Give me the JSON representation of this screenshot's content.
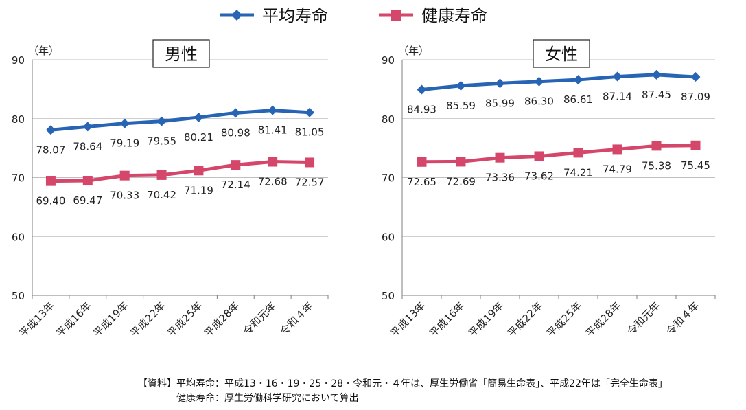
{
  "legend": [
    {
      "label": "平均寿命",
      "color": "#2764b4"
    },
    {
      "label": "健康寿命",
      "color": "#d5476a"
    }
  ],
  "source": {
    "line1": "【資料】平均寿命：平成13・16・19・25・28・令和元・４年は、厚生労働省「簡易生命表」、平成22年は「完全生命表」",
    "line2": "健康寿命：厚生労働科学研究において算出"
  },
  "chart_data": [
    {
      "type": "line",
      "title": "男性",
      "ylabel": "（年）",
      "ylim": [
        50,
        90
      ],
      "yticks": [
        50,
        60,
        70,
        80,
        90
      ],
      "categories": [
        "平成13年",
        "平成16年",
        "平成19年",
        "平成22年",
        "平成25年",
        "平成28年",
        "令和元年",
        "令和４年"
      ],
      "series": [
        {
          "name": "平均寿命",
          "labels": [
            "78.07",
            "78.64",
            "79.19",
            "79.55",
            "80.21",
            "80.98",
            "81.41",
            "81.05"
          ],
          "values": [
            78.07,
            78.64,
            79.19,
            79.55,
            80.21,
            80.98,
            81.41,
            81.05
          ]
        },
        {
          "name": "健康寿命",
          "labels": [
            "69.40",
            "69.47",
            "70.33",
            "70.42",
            "71.19",
            "72.14",
            "72.68",
            "72.57"
          ],
          "values": [
            69.4,
            69.47,
            70.33,
            70.42,
            71.19,
            72.14,
            72.68,
            72.57
          ]
        }
      ]
    },
    {
      "type": "line",
      "title": "女性",
      "ylabel": "（年）",
      "ylim": [
        50,
        90
      ],
      "yticks": [
        50,
        60,
        70,
        80,
        90
      ],
      "categories": [
        "平成13年",
        "平成16年",
        "平成19年",
        "平成22年",
        "平成25年",
        "平成28年",
        "令和元年",
        "令和４年"
      ],
      "series": [
        {
          "name": "平均寿命",
          "labels": [
            "84.93",
            "85.59",
            "85.99",
            "86.30",
            "86.61",
            "87.14",
            "87.45",
            "87.09"
          ],
          "values": [
            84.93,
            85.59,
            85.99,
            86.3,
            86.61,
            87.14,
            87.45,
            87.09
          ]
        },
        {
          "name": "健康寿命",
          "labels": [
            "72.65",
            "72.69",
            "73.36",
            "73.62",
            "74.21",
            "74.79",
            "75.38",
            "75.45"
          ],
          "values": [
            72.65,
            72.69,
            73.36,
            73.62,
            74.21,
            74.79,
            75.38,
            75.45
          ]
        }
      ]
    }
  ]
}
